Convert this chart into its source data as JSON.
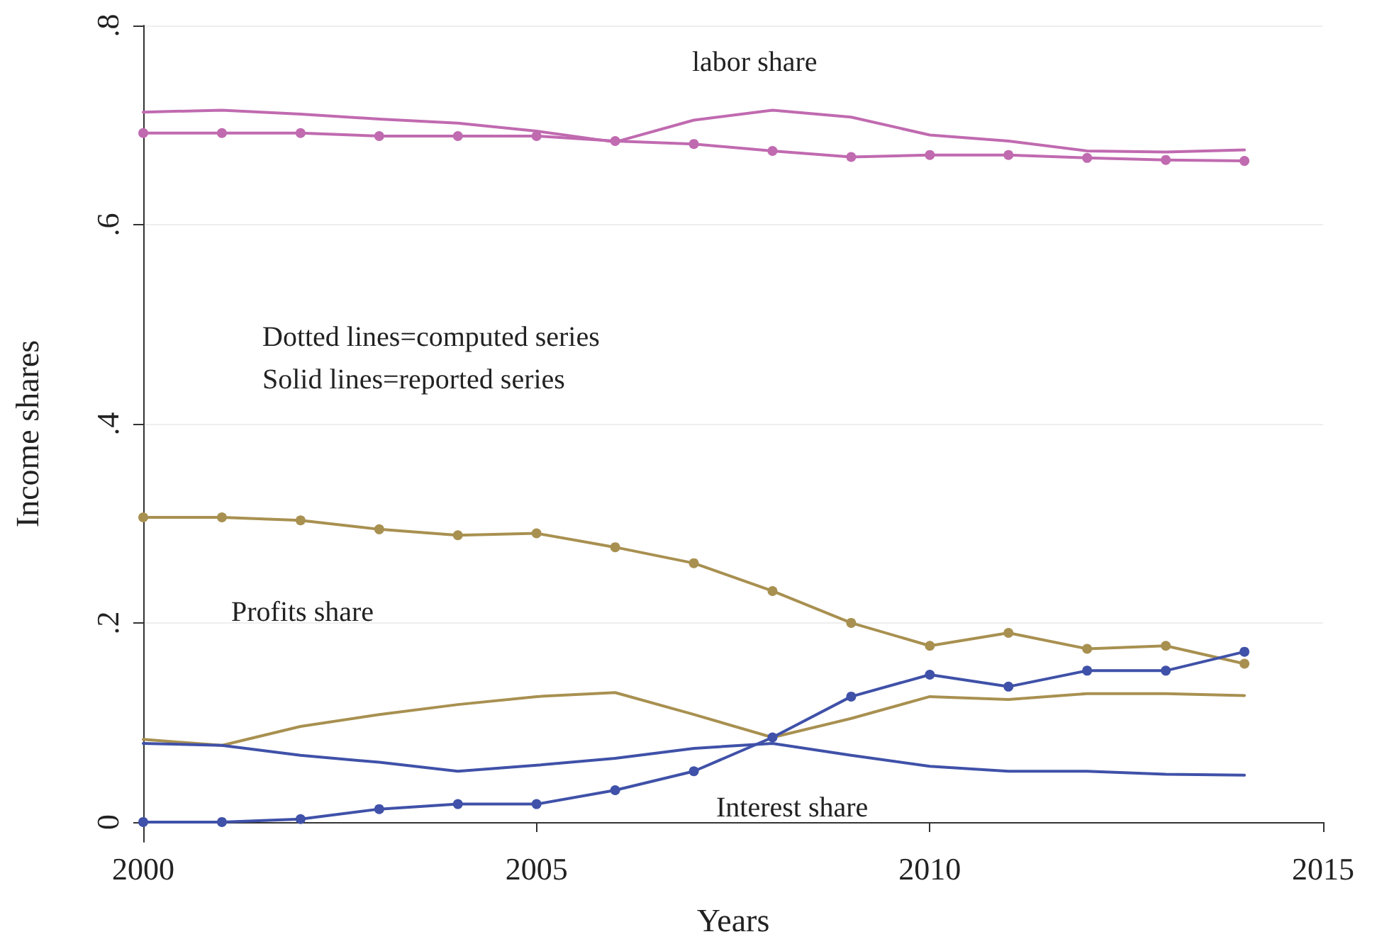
{
  "chart_data": {
    "type": "line",
    "xlabel": "Years",
    "ylabel": "Income shares",
    "x": [
      2000,
      2001,
      2002,
      2003,
      2004,
      2005,
      2006,
      2007,
      2008,
      2009,
      2010,
      2011,
      2012,
      2013,
      2014
    ],
    "xlim": [
      2000,
      2015
    ],
    "xticks": [
      2000,
      2005,
      2010,
      2015
    ],
    "ylim": [
      -0.02,
      0.8
    ],
    "yticks": [
      {
        "value": 0,
        "label": "0"
      },
      {
        "value": 0.2,
        "label": ".2"
      },
      {
        "value": 0.4,
        "label": ".4"
      },
      {
        "value": 0.6,
        "label": ".6"
      },
      {
        "value": 0.8,
        "label": ".8"
      }
    ],
    "grid": "y",
    "line_style": "solid",
    "series": [
      {
        "color": "#c06ab0",
        "marker": "circle",
        "values": [
          0.692,
          0.692,
          0.692,
          0.689,
          0.689,
          0.689,
          0.684,
          0.681,
          0.674,
          0.668,
          0.67,
          0.67,
          0.667,
          0.665,
          0.664
        ]
      },
      {
        "color": "#c06ab0",
        "marker": "none",
        "values": [
          0.713,
          0.715,
          0.711,
          0.706,
          0.702,
          0.694,
          0.683,
          0.705,
          0.715,
          0.708,
          0.69,
          0.684,
          0.674,
          0.673,
          0.675
        ]
      },
      {
        "color": "#a89050",
        "marker": "circle",
        "values": [
          0.306,
          0.306,
          0.303,
          0.294,
          0.288,
          0.29,
          0.276,
          0.26,
          0.232,
          0.2,
          0.177,
          0.19,
          0.174,
          0.177,
          0.159
        ]
      },
      {
        "color": "#a89050",
        "marker": "none",
        "values": [
          0.083,
          0.077,
          0.096,
          0.108,
          0.118,
          0.126,
          0.13,
          0.108,
          0.085,
          0.104,
          0.126,
          0.123,
          0.129,
          0.129,
          0.127
        ]
      },
      {
        "color": "#3f51a8",
        "marker": "circle",
        "values": [
          0,
          0,
          0.003,
          0.013,
          0.018,
          0.018,
          0.032,
          0.051,
          0.085,
          0.126,
          0.148,
          0.136,
          0.152,
          0.152,
          0.171
        ]
      },
      {
        "color": "#3f51a8",
        "marker": "none",
        "values": [
          0.079,
          0.077,
          0.067,
          0.06,
          0.051,
          0.057,
          0.064,
          0.074,
          0.079,
          0.067,
          0.056,
          0.051,
          0.051,
          0.048,
          0.047
        ]
      }
    ],
    "annotations": [
      "labor share",
      "Profits share",
      "Interest share",
      "Dotted lines=computed series",
      "Solid lines=reported series"
    ]
  }
}
